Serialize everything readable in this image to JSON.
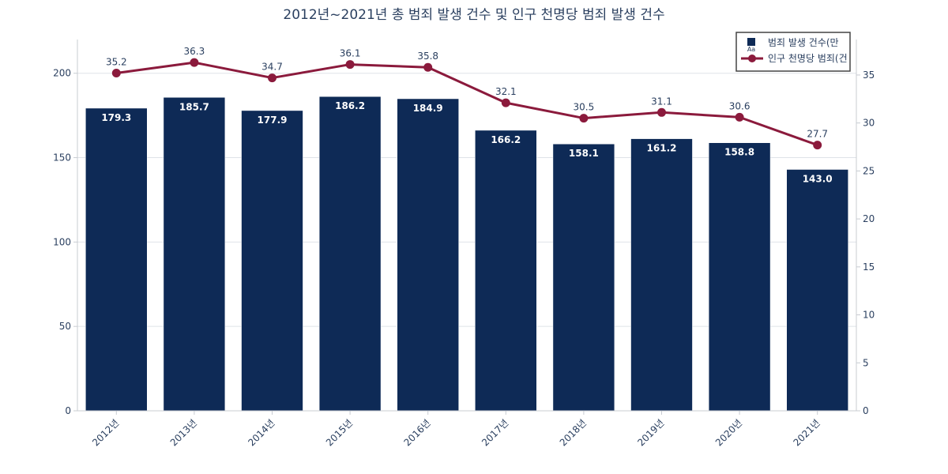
{
  "chart_data": {
    "type": "bar+line",
    "title": "2012년~2021년 총 범죄 발생 건수 및 인구 천명당 범죄 발생 건수",
    "categories": [
      "2012년",
      "2013년",
      "2014년",
      "2015년",
      "2016년",
      "2017년",
      "2018년",
      "2019년",
      "2020년",
      "2021년"
    ],
    "series": [
      {
        "name": "범죄 발생 건수(만",
        "type": "bar",
        "axis": "y",
        "color": "#0e2a56",
        "values": [
          179.3,
          185.7,
          177.9,
          186.2,
          184.9,
          166.2,
          158.1,
          161.2,
          158.8,
          143.0
        ],
        "labels": [
          "179.3",
          "185.7",
          "177.9",
          "186.2",
          "184.9",
          "166.2",
          "158.1",
          "161.2",
          "158.8",
          "143.0"
        ]
      },
      {
        "name": "인구 천명당 범죄(건",
        "type": "line",
        "axis": "y2",
        "color": "#8b1a3c",
        "values": [
          35.2,
          36.3,
          34.7,
          36.1,
          35.8,
          32.1,
          30.5,
          31.1,
          30.6,
          27.7
        ],
        "labels": [
          "35.2",
          "36.3",
          "34.7",
          "36.1",
          "35.8",
          "32.1",
          "30.5",
          "31.1",
          "30.6",
          "27.7"
        ]
      }
    ],
    "y": {
      "ylim": [
        0,
        220
      ],
      "ticks": [
        0,
        50,
        100,
        150,
        200
      ]
    },
    "y2": {
      "ylim": [
        0,
        38.7
      ],
      "ticks": [
        0,
        5,
        10,
        15,
        20,
        25,
        30,
        35
      ]
    },
    "grid": true,
    "legend_position": "top-right",
    "legend_marker_text": "Aa"
  }
}
